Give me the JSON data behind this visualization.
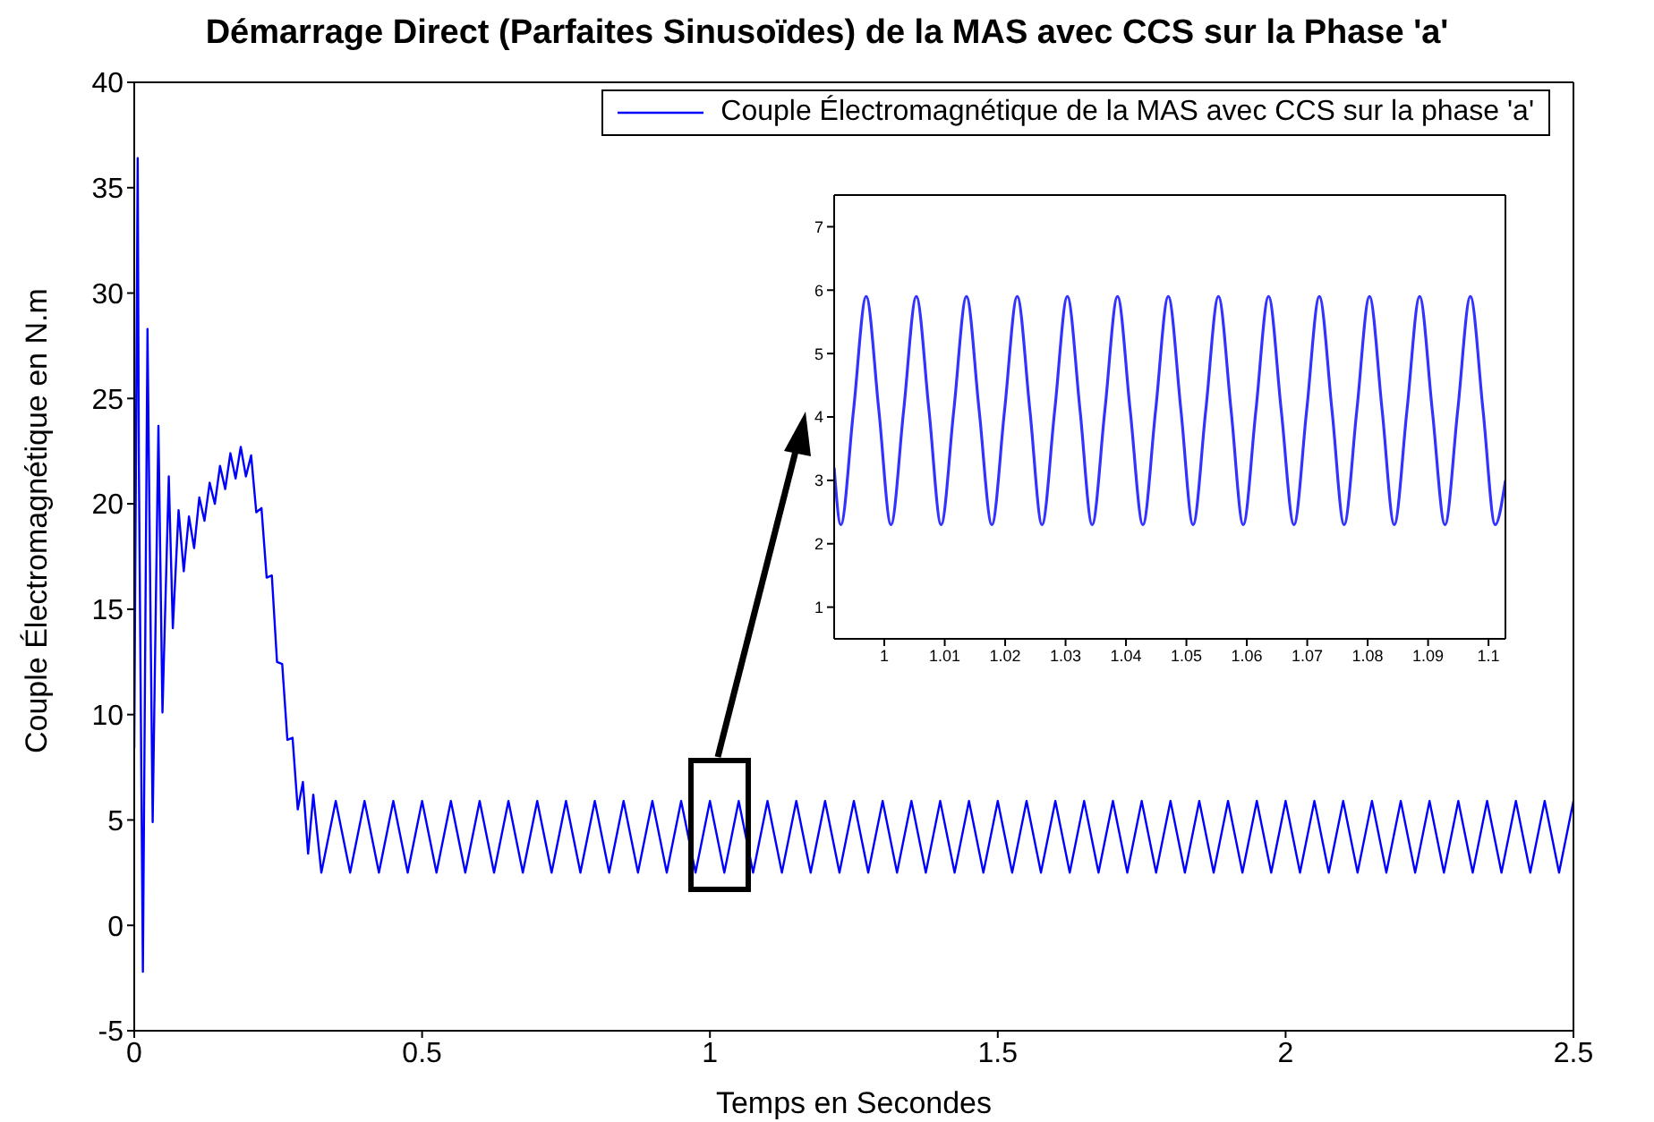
{
  "chart_data": [
    {
      "type": "line",
      "title": "Démarrage Direct (Parfaites Sinusoïdes) de la MAS avec CCS sur la Phase 'a'",
      "xlabel": "Temps en Secondes",
      "ylabel": "Couple Électromagnétique en N.m",
      "x": [
        0,
        0.006,
        0.008,
        0.015,
        0.023,
        0.032,
        0.042,
        0.049,
        0.06,
        0.067,
        0.077,
        0.086,
        0.095,
        0.104,
        0.113,
        0.122,
        0.131,
        0.14,
        0.149,
        0.158,
        0.167,
        0.176,
        0.185,
        0.194,
        0.203,
        0.212,
        0.221,
        0.23,
        0.239,
        0.248,
        0.257,
        0.266,
        0.275,
        0.284,
        0.293,
        0.302,
        0.311,
        0.325,
        0.35,
        0.375,
        0.4,
        0.425,
        0.45,
        0.475,
        0.5,
        0.525,
        0.55,
        0.575,
        0.6,
        0.625,
        0.65,
        0.675,
        0.7,
        0.725,
        0.75,
        0.775,
        0.8,
        0.825,
        0.85,
        0.875,
        0.9,
        0.925,
        0.95,
        0.975,
        1,
        1.025,
        1.05,
        1.075,
        1.1,
        1.125,
        1.15,
        1.175,
        1.2,
        1.225,
        1.25,
        1.275,
        1.3,
        1.325,
        1.35,
        1.375,
        1.4,
        1.425,
        1.45,
        1.475,
        1.5,
        1.525,
        1.55,
        1.575,
        1.6,
        1.625,
        1.65,
        1.675,
        1.7,
        1.725,
        1.75,
        1.775,
        1.8,
        1.825,
        1.85,
        1.875,
        1.9,
        1.925,
        1.95,
        1.975,
        2,
        2.025,
        2.05,
        2.075,
        2.1,
        2.125,
        2.15,
        2.175,
        2.2,
        2.225,
        2.25,
        2.275,
        2.3,
        2.325,
        2.35,
        2.375,
        2.4,
        2.425,
        2.45,
        2.475,
        2.5
      ],
      "series": [
        {
          "name": "Couple Électromagnétique de la MAS avec CCS sur la phase 'a'",
          "color": "#0000ff",
          "values": [
            8.4,
            36.4,
            22,
            -2.2,
            28.3,
            4.9,
            23.7,
            10.1,
            21.3,
            14.1,
            19.7,
            16.8,
            19.4,
            17.9,
            20.3,
            19.2,
            21,
            20,
            21.8,
            20.7,
            22.4,
            21.2,
            22.7,
            21.3,
            22.3,
            19.6,
            19.8,
            16.5,
            16.6,
            12.5,
            12.4,
            8.8,
            8.9,
            5.5,
            6.8,
            3.4,
            6.2,
            2.5,
            5.9,
            2.5,
            5.9,
            2.5,
            5.9,
            2.5,
            5.9,
            2.5,
            5.9,
            2.5,
            5.9,
            2.5,
            5.9,
            2.5,
            5.9,
            2.5,
            5.9,
            2.5,
            5.9,
            2.5,
            5.9,
            2.5,
            5.9,
            2.5,
            5.9,
            2.5,
            5.9,
            2.5,
            5.9,
            2.5,
            5.9,
            2.5,
            5.9,
            2.5,
            5.9,
            2.5,
            5.9,
            2.5,
            5.9,
            2.5,
            5.9,
            2.5,
            5.9,
            2.5,
            5.9,
            2.5,
            5.9,
            2.5,
            5.9,
            2.5,
            5.9,
            2.5,
            5.9,
            2.5,
            5.9,
            2.5,
            5.9,
            2.5,
            5.9,
            2.5,
            5.9,
            2.5,
            5.9,
            2.5,
            5.9,
            2.5,
            5.9,
            2.5,
            5.9,
            2.5,
            5.9,
            2.5,
            5.9,
            2.5,
            5.9,
            2.5,
            5.9,
            2.5,
            5.9,
            2.5,
            5.9,
            2.5,
            5.9,
            2.5,
            5.9,
            2.5,
            5.9
          ]
        }
      ],
      "xlim": [
        0,
        2.5
      ],
      "ylim": [
        -5,
        40
      ],
      "xticks": [
        0,
        0.5,
        1,
        1.5,
        2,
        2.5
      ],
      "yticks": [
        -5,
        0,
        5,
        10,
        15,
        20,
        25,
        30,
        35,
        40
      ],
      "legend": "top right"
    },
    {
      "type": "line",
      "x": [
        0.9917,
        0.9928,
        0.9949,
        0.997,
        0.9991,
        1.0011,
        1.0032,
        1.0053,
        1.0074,
        1.0094,
        1.0115,
        1.0136,
        1.0157,
        1.0178,
        1.0199,
        1.022,
        1.0241,
        1.0261,
        1.0282,
        1.0303,
        1.0324,
        1.0344,
        1.0365,
        1.0386,
        1.0407,
        1.0428,
        1.0449,
        1.047,
        1.0491,
        1.0511,
        1.0532,
        1.0553,
        1.0574,
        1.0594,
        1.0615,
        1.0636,
        1.0657,
        1.0678,
        1.0699,
        1.072,
        1.0741,
        1.0761,
        1.0782,
        1.0803,
        1.0824,
        1.0844,
        1.0865,
        1.0886,
        1.0907,
        1.0928,
        1.0949,
        1.097,
        1.0991,
        1.1011,
        1.1028
      ],
      "series": [
        {
          "color": "#3333ff",
          "values": [
            3.2,
            2.3,
            4.1,
            5.9,
            4.1,
            2.3,
            4.1,
            5.9,
            4.1,
            2.3,
            4.1,
            5.9,
            4.1,
            2.3,
            4.1,
            5.9,
            4.1,
            2.3,
            4.1,
            5.9,
            4.1,
            2.3,
            4.1,
            5.9,
            4.1,
            2.3,
            4.1,
            5.9,
            4.1,
            2.3,
            4.1,
            5.9,
            4.1,
            2.3,
            4.1,
            5.9,
            4.1,
            2.3,
            4.1,
            5.9,
            4.1,
            2.3,
            4.1,
            5.9,
            4.1,
            2.3,
            4.1,
            5.9,
            4.1,
            2.3,
            4.1,
            5.9,
            4.1,
            2.3,
            3.0
          ]
        }
      ],
      "xlim": [
        0.9917,
        1.1028
      ],
      "ylim": [
        0.5,
        7.5
      ],
      "xticks": [
        1,
        1.01,
        1.02,
        1.03,
        1.04,
        1.05,
        1.06,
        1.07,
        1.08,
        1.09,
        1.1
      ],
      "yticks": [
        1,
        2,
        3,
        4,
        5,
        6,
        7
      ]
    }
  ]
}
